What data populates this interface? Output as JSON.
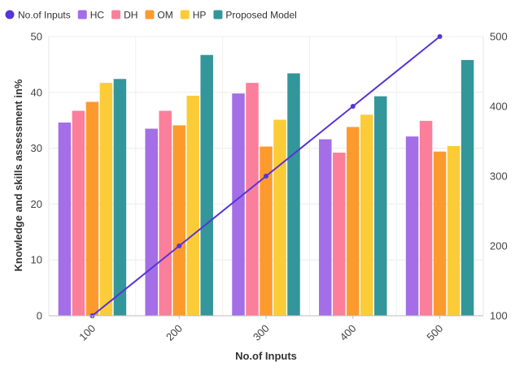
{
  "chart_data": {
    "type": "bar",
    "categories": [
      "100",
      "200",
      "300",
      "400",
      "500"
    ],
    "xlabel": "No.of Inputs",
    "ylabel": "Knowledge and skills assessment in%",
    "ylim": [
      0,
      50
    ],
    "y_ticks": [
      0,
      10,
      20,
      30,
      40,
      50
    ],
    "y2lim": [
      100,
      500
    ],
    "y2_ticks": [
      100,
      200,
      300,
      400,
      500
    ],
    "grid": true,
    "legend_position": "top-left",
    "series": [
      {
        "name": "HC",
        "type": "bar",
        "color": "#a36ee6",
        "values": [
          34.6,
          33.5,
          39.8,
          31.6,
          32.1
        ]
      },
      {
        "name": "DH",
        "type": "bar",
        "color": "#fb7f9a",
        "values": [
          36.7,
          36.7,
          41.7,
          29.2,
          34.9
        ]
      },
      {
        "name": "OM",
        "type": "bar",
        "color": "#fd9a2e",
        "values": [
          38.3,
          34.1,
          30.3,
          33.8,
          29.4
        ]
      },
      {
        "name": "HP",
        "type": "bar",
        "color": "#fbcc37",
        "values": [
          41.7,
          39.4,
          35.1,
          36.0,
          30.4
        ]
      },
      {
        "name": "Proposed Model",
        "type": "bar",
        "color": "#33969a",
        "values": [
          42.4,
          46.7,
          43.4,
          39.3,
          45.8
        ]
      },
      {
        "name": "No.of Inputs",
        "type": "line",
        "axis": "right",
        "color": "#5634d8",
        "values": [
          100,
          200,
          300,
          400,
          500
        ]
      }
    ]
  }
}
